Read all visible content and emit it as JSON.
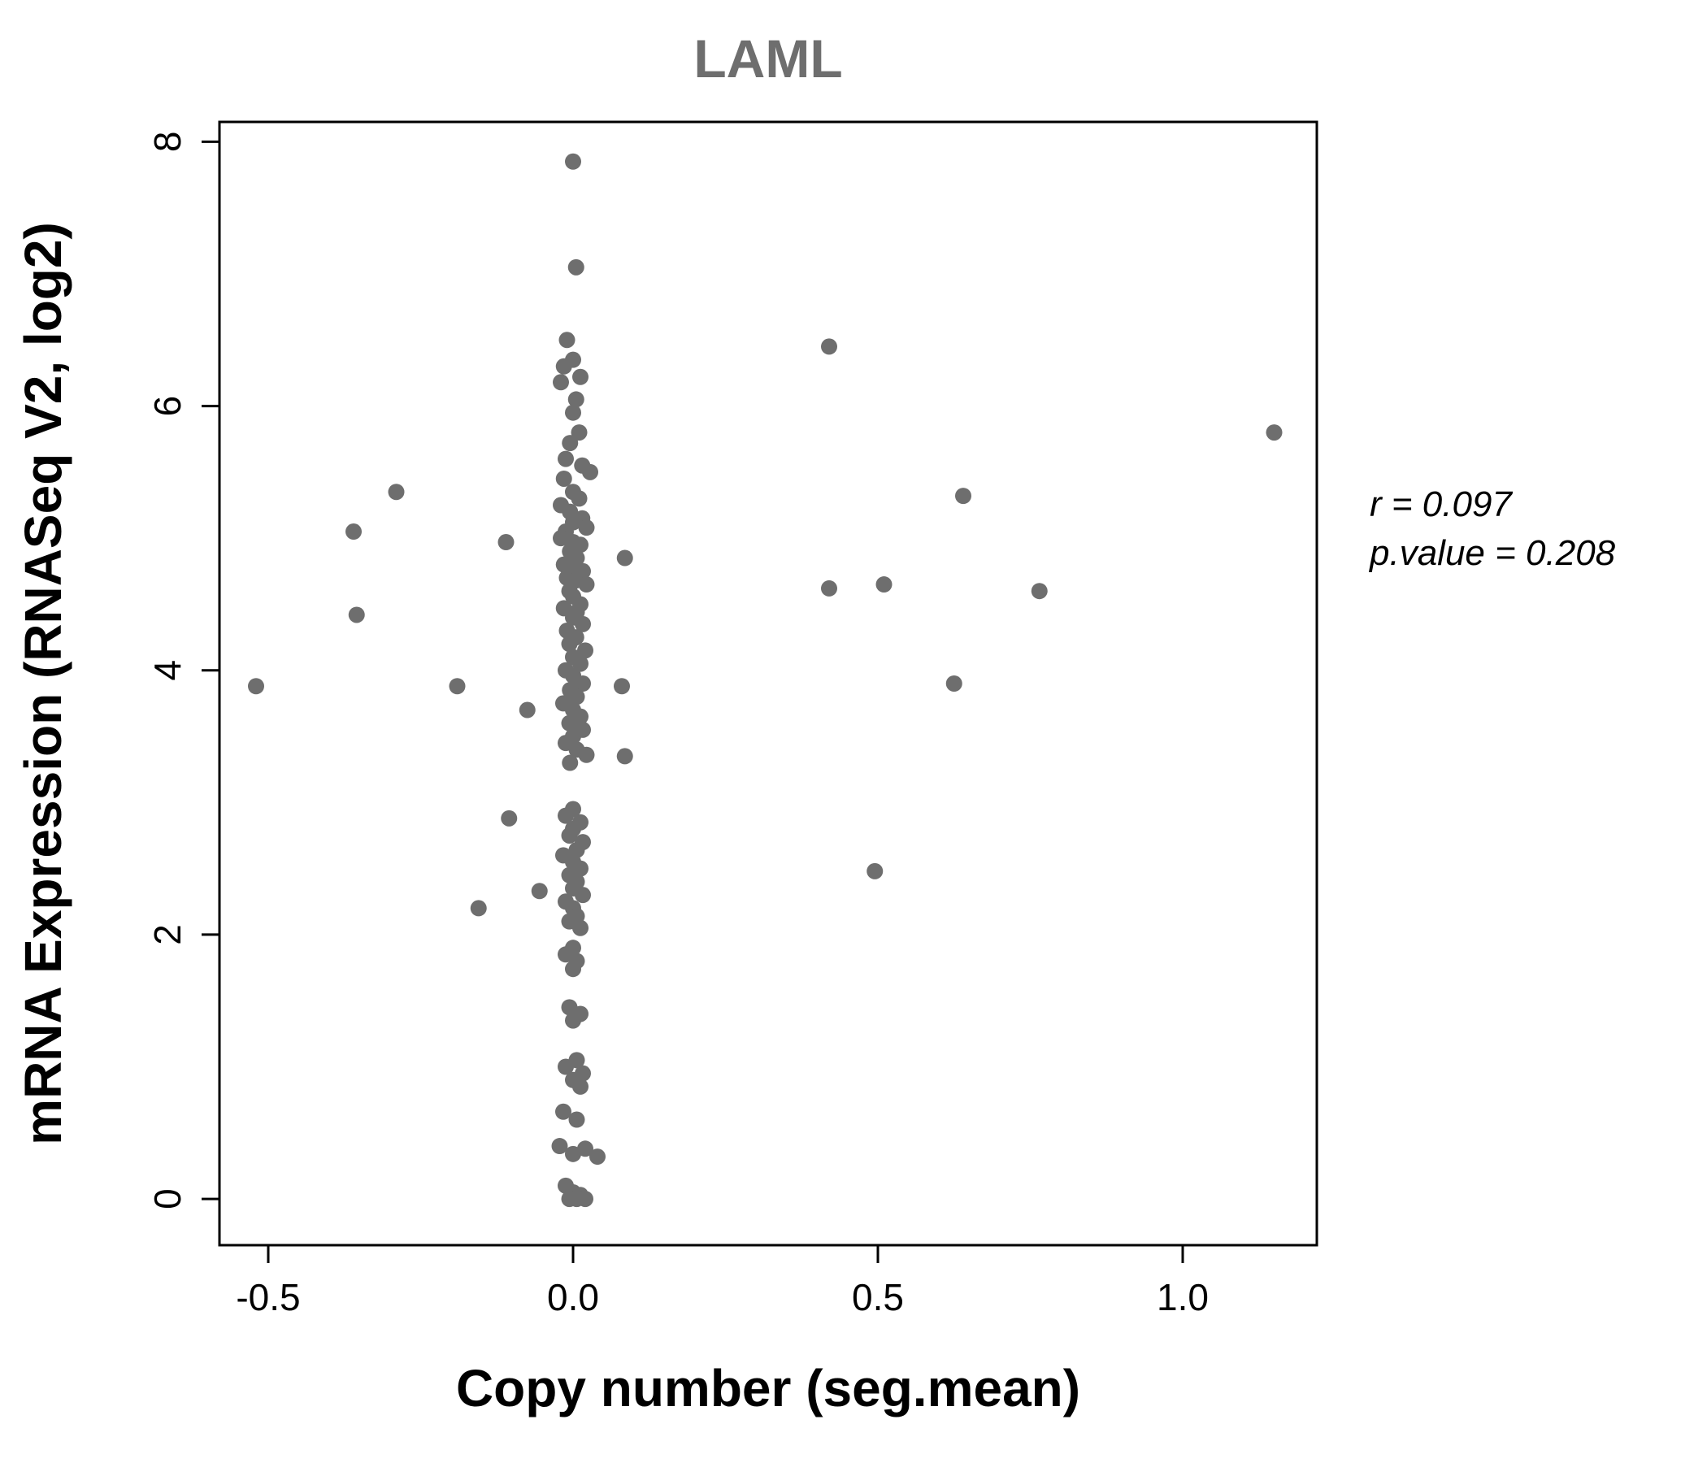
{
  "chart_data": {
    "type": "scatter",
    "title": "LAML",
    "xlabel": "Copy number (seg.mean)",
    "ylabel": "mRNA Expression (RNASeq V2, log2)",
    "annotation": {
      "line1": "r = 0.097",
      "line2": "p.value = 0.208"
    },
    "r": 0.097,
    "p_value": 0.208,
    "xlim": [
      -0.58,
      1.22
    ],
    "ylim": [
      -0.35,
      8.15
    ],
    "x_ticks": [
      -0.5,
      0.0,
      0.5,
      1.0
    ],
    "x_tick_labels": [
      "-0.5",
      "0.0",
      "0.5",
      "1.0"
    ],
    "y_ticks": [
      0,
      2,
      4,
      6,
      8
    ],
    "y_tick_labels": [
      "0",
      "2",
      "4",
      "6",
      "8"
    ],
    "grid": false,
    "legend": "none",
    "point_color": "#6e6e6e",
    "point_radius": 10,
    "points": [
      [
        -0.52,
        3.88
      ],
      [
        -0.36,
        5.05
      ],
      [
        -0.355,
        4.42
      ],
      [
        -0.29,
        5.35
      ],
      [
        -0.19,
        3.88
      ],
      [
        -0.155,
        2.2
      ],
      [
        -0.11,
        4.97
      ],
      [
        -0.105,
        2.88
      ],
      [
        -0.075,
        3.7
      ],
      [
        -0.055,
        2.33
      ],
      [
        0.085,
        4.85
      ],
      [
        0.08,
        3.88
      ],
      [
        0.085,
        3.35
      ],
      [
        0.42,
        6.45
      ],
      [
        0.42,
        4.62
      ],
      [
        0.495,
        2.48
      ],
      [
        0.51,
        4.65
      ],
      [
        0.625,
        3.9
      ],
      [
        0.64,
        5.32
      ],
      [
        0.765,
        4.6
      ],
      [
        1.15,
        5.8
      ],
      [
        0.0,
        7.85
      ],
      [
        0.005,
        7.05
      ],
      [
        -0.01,
        6.5
      ],
      [
        0.0,
        6.35
      ],
      [
        -0.015,
        6.3
      ],
      [
        0.012,
        6.22
      ],
      [
        -0.02,
        6.18
      ],
      [
        0.005,
        6.05
      ],
      [
        0.0,
        5.95
      ],
      [
        0.01,
        5.8
      ],
      [
        -0.005,
        5.72
      ],
      [
        -0.012,
        5.6
      ],
      [
        0.015,
        5.55
      ],
      [
        0.028,
        5.5
      ],
      [
        -0.015,
        5.45
      ],
      [
        0.0,
        5.35
      ],
      [
        0.01,
        5.3
      ],
      [
        -0.02,
        5.25
      ],
      [
        -0.005,
        5.2
      ],
      [
        0.015,
        5.15
      ],
      [
        0.0,
        5.12
      ],
      [
        0.022,
        5.08
      ],
      [
        -0.012,
        5.05
      ],
      [
        -0.02,
        5.0
      ],
      [
        0.0,
        4.97
      ],
      [
        0.012,
        4.95
      ],
      [
        -0.005,
        4.9
      ],
      [
        0.006,
        4.85
      ],
      [
        -0.015,
        4.8
      ],
      [
        0.0,
        4.78
      ],
      [
        0.016,
        4.75
      ],
      [
        -0.01,
        4.7
      ],
      [
        0.005,
        4.68
      ],
      [
        0.022,
        4.65
      ],
      [
        -0.006,
        4.6
      ],
      [
        0.0,
        4.56
      ],
      [
        0.012,
        4.5
      ],
      [
        -0.015,
        4.47
      ],
      [
        0.006,
        4.44
      ],
      [
        0.0,
        4.4
      ],
      [
        0.016,
        4.35
      ],
      [
        -0.01,
        4.3
      ],
      [
        0.005,
        4.25
      ],
      [
        -0.006,
        4.2
      ],
      [
        0.02,
        4.15
      ],
      [
        0.0,
        4.1
      ],
      [
        0.012,
        4.05
      ],
      [
        -0.012,
        4.0
      ],
      [
        0.0,
        3.96
      ],
      [
        0.016,
        3.9
      ],
      [
        -0.005,
        3.85
      ],
      [
        0.006,
        3.8
      ],
      [
        -0.016,
        3.75
      ],
      [
        0.0,
        3.7
      ],
      [
        0.012,
        3.65
      ],
      [
        -0.006,
        3.6
      ],
      [
        0.016,
        3.55
      ],
      [
        0.0,
        3.5
      ],
      [
        -0.012,
        3.45
      ],
      [
        0.006,
        3.4
      ],
      [
        0.022,
        3.36
      ],
      [
        -0.005,
        3.3
      ],
      [
        0.0,
        2.95
      ],
      [
        -0.012,
        2.9
      ],
      [
        0.012,
        2.85
      ],
      [
        0.0,
        2.8
      ],
      [
        -0.006,
        2.75
      ],
      [
        0.016,
        2.7
      ],
      [
        0.006,
        2.64
      ],
      [
        -0.016,
        2.6
      ],
      [
        0.0,
        2.55
      ],
      [
        0.012,
        2.5
      ],
      [
        -0.006,
        2.45
      ],
      [
        0.006,
        2.4
      ],
      [
        0.0,
        2.35
      ],
      [
        0.016,
        2.3
      ],
      [
        -0.012,
        2.25
      ],
      [
        0.0,
        2.2
      ],
      [
        0.006,
        2.14
      ],
      [
        -0.006,
        2.1
      ],
      [
        0.012,
        2.05
      ],
      [
        0.0,
        1.9
      ],
      [
        -0.012,
        1.85
      ],
      [
        0.006,
        1.8
      ],
      [
        0.0,
        1.74
      ],
      [
        -0.006,
        1.45
      ],
      [
        0.012,
        1.4
      ],
      [
        0.0,
        1.35
      ],
      [
        0.006,
        1.05
      ],
      [
        -0.012,
        1.0
      ],
      [
        0.016,
        0.95
      ],
      [
        0.0,
        0.9
      ],
      [
        0.012,
        0.85
      ],
      [
        -0.016,
        0.66
      ],
      [
        0.006,
        0.6
      ],
      [
        -0.022,
        0.4
      ],
      [
        0.02,
        0.38
      ],
      [
        0.0,
        0.34
      ],
      [
        0.04,
        0.32
      ],
      [
        -0.012,
        0.1
      ],
      [
        0.0,
        0.05
      ],
      [
        0.012,
        0.03
      ],
      [
        -0.006,
        0.0
      ],
      [
        0.02,
        0.0
      ],
      [
        0.006,
        0.0
      ]
    ]
  }
}
